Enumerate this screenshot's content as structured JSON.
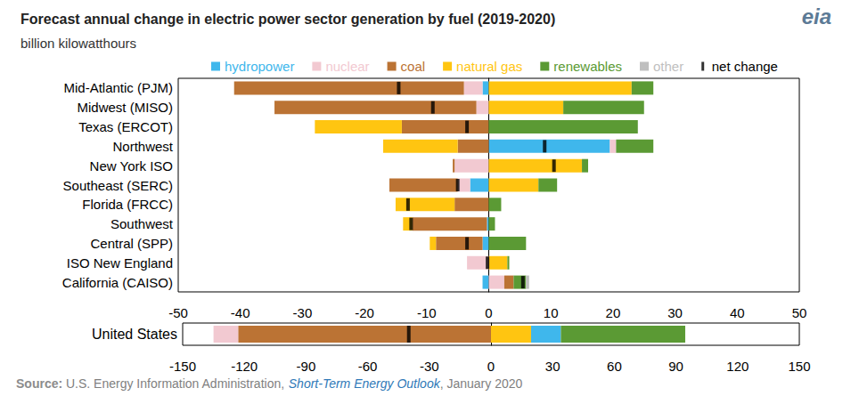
{
  "title": "Forecast annual change in electric power sector generation by fuel (2019-2020)",
  "subtitle": "billion kilowatthours",
  "logo": "eia",
  "source": [
    "Source:",
    " U.S. Energy Information Administration, ",
    "Short-Term Energy Outlook",
    ", January 2020"
  ],
  "chart_data": [
    {
      "type": "bar",
      "orientation": "horizontal",
      "stacked": true,
      "legend": "top",
      "grid": false,
      "categories": [
        "Mid-Atlantic (PJM)",
        "Midwest (MISO)",
        "Texas (ERCOT)",
        "Northwest",
        "New York ISO",
        "Southeast (SERC)",
        "Florida (FRCC)",
        "Southwest",
        "Central (SPP)",
        "ISO New England",
        "California (CAISO)"
      ],
      "xlim": [
        -50,
        50
      ],
      "xticks": [
        -50,
        -40,
        -30,
        -20,
        -10,
        0,
        10,
        20,
        30,
        40,
        50
      ],
      "series": [
        {
          "name": "hydropower",
          "color": "#3fb7ec",
          "values": [
            -1,
            0,
            0,
            19.5,
            0,
            -3,
            0,
            -0.3,
            -1,
            0,
            -1
          ]
        },
        {
          "name": "nuclear",
          "color": "#f2c9d1",
          "values": [
            -3,
            -2,
            0,
            1,
            -5.5,
            -2,
            0,
            0,
            0,
            -3.5,
            2.5
          ]
        },
        {
          "name": "coal",
          "color": "#bb7334",
          "values": [
            -37,
            -32.5,
            -14,
            -5,
            -0.3,
            -11,
            -5.5,
            -12,
            -7.5,
            0,
            1.5
          ]
        },
        {
          "name": "natural gas",
          "color": "#ffc511",
          "values": [
            23,
            12,
            -14,
            -12,
            15,
            8,
            -9.5,
            -1.5,
            -1,
            3,
            0
          ]
        },
        {
          "name": "renewables",
          "color": "#5b9a34",
          "values": [
            3.5,
            13,
            24,
            6,
            1,
            3,
            2,
            1,
            6,
            0.3,
            2
          ]
        },
        {
          "name": "other",
          "color": "#bfbfbf",
          "values": [
            0,
            0,
            0,
            0,
            0,
            0,
            0,
            0,
            0,
            0,
            0.5
          ]
        },
        {
          "name": "net change",
          "type": "scatter",
          "marker": "rect",
          "color": "#000000",
          "values": [
            -14.5,
            -9,
            -3.5,
            9,
            10.5,
            -5,
            -13,
            -12.5,
            -3.5,
            -0.2,
            5.5
          ]
        }
      ]
    },
    {
      "type": "bar",
      "orientation": "horizontal",
      "stacked": true,
      "grid": false,
      "categories": [
        "United States"
      ],
      "xlim": [
        -150,
        150
      ],
      "xticks": [
        -150,
        -120,
        -90,
        -60,
        -30,
        0,
        30,
        60,
        90,
        120,
        150
      ],
      "series": [
        {
          "name": "coal",
          "color": "#bb7334",
          "values": [
            -123
          ]
        },
        {
          "name": "nuclear",
          "color": "#f2c9d1",
          "values": [
            -12
          ]
        },
        {
          "name": "natural gas",
          "color": "#ffc511",
          "values": [
            19.5
          ]
        },
        {
          "name": "hydropower",
          "color": "#3fb7ec",
          "values": [
            14.5
          ]
        },
        {
          "name": "renewables",
          "color": "#5b9a34",
          "values": [
            60.5
          ]
        },
        {
          "name": "net change",
          "type": "scatter",
          "marker": "rect",
          "color": "#000000",
          "values": [
            -40
          ]
        }
      ]
    }
  ]
}
